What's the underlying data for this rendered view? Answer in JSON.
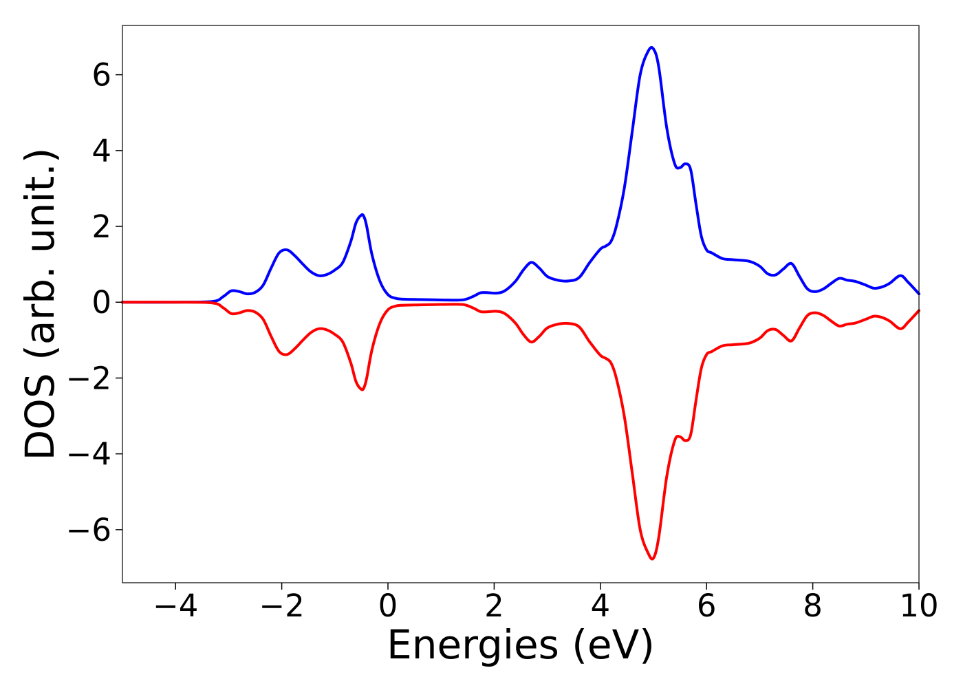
{
  "chart_data": {
    "type": "line",
    "title": "",
    "xlabel": "Energies (eV)",
    "ylabel": "DOS (arb. unit.)",
    "xlim": [
      -5,
      10
    ],
    "ylim": [
      -7.4,
      7.3
    ],
    "xticks": [
      -4,
      -2,
      0,
      2,
      4,
      6,
      8,
      10
    ],
    "xtick_labels": [
      "−4",
      "−2",
      "0",
      "2",
      "4",
      "6",
      "8",
      "10"
    ],
    "yticks": [
      -6,
      -4,
      -2,
      0,
      2,
      4,
      6
    ],
    "ytick_labels": [
      "−6",
      "−4",
      "−2",
      "0",
      "2",
      "4",
      "6"
    ],
    "grid": false,
    "legend": "none",
    "series": [
      {
        "color": "#0000ff",
        "x": [
          -5.0,
          -4.0,
          -3.3,
          -3.1,
          -2.95,
          -2.8,
          -2.65,
          -2.5,
          -2.35,
          -2.2,
          -2.05,
          -1.9,
          -1.75,
          -1.6,
          -1.45,
          -1.3,
          -1.15,
          -1.0,
          -0.85,
          -0.7,
          -0.6,
          -0.5,
          -0.45,
          -0.4,
          -0.3,
          -0.15,
          0.0,
          0.15,
          0.3,
          0.6,
          1.0,
          1.4,
          1.6,
          1.75,
          1.9,
          2.05,
          2.2,
          2.4,
          2.55,
          2.7,
          2.85,
          3.0,
          3.2,
          3.4,
          3.6,
          3.8,
          4.0,
          4.1,
          4.2,
          4.3,
          4.45,
          4.6,
          4.75,
          4.9,
          5.0,
          5.1,
          5.25,
          5.4,
          5.5,
          5.6,
          5.7,
          5.8,
          5.9,
          6.0,
          6.1,
          6.3,
          6.5,
          6.8,
          7.0,
          7.15,
          7.3,
          7.45,
          7.6,
          7.75,
          7.9,
          8.05,
          8.2,
          8.35,
          8.5,
          8.65,
          8.8,
          9.0,
          9.15,
          9.3,
          9.45,
          9.65,
          9.8,
          10.0
        ],
        "y": [
          0.0,
          0.0,
          0.02,
          0.15,
          0.3,
          0.28,
          0.22,
          0.26,
          0.45,
          0.9,
          1.3,
          1.38,
          1.22,
          1.0,
          0.8,
          0.7,
          0.73,
          0.85,
          1.05,
          1.6,
          2.1,
          2.3,
          2.25,
          2.0,
          1.25,
          0.55,
          0.2,
          0.1,
          0.08,
          0.07,
          0.06,
          0.06,
          0.15,
          0.25,
          0.25,
          0.24,
          0.3,
          0.55,
          0.85,
          1.05,
          0.9,
          0.68,
          0.58,
          0.56,
          0.65,
          1.05,
          1.4,
          1.48,
          1.6,
          2.0,
          3.0,
          4.5,
          6.0,
          6.62,
          6.68,
          6.2,
          4.6,
          3.65,
          3.55,
          3.65,
          3.5,
          2.6,
          1.75,
          1.38,
          1.3,
          1.15,
          1.12,
          1.08,
          0.95,
          0.75,
          0.72,
          0.88,
          1.02,
          0.68,
          0.35,
          0.28,
          0.35,
          0.5,
          0.63,
          0.58,
          0.55,
          0.45,
          0.37,
          0.4,
          0.5,
          0.7,
          0.52,
          0.22
        ]
      },
      {
        "color": "#ff0000",
        "x": [
          -5.0,
          -4.0,
          -3.3,
          -3.1,
          -2.95,
          -2.8,
          -2.65,
          -2.5,
          -2.35,
          -2.2,
          -2.05,
          -1.9,
          -1.75,
          -1.6,
          -1.45,
          -1.3,
          -1.15,
          -1.0,
          -0.85,
          -0.7,
          -0.6,
          -0.5,
          -0.45,
          -0.4,
          -0.3,
          -0.15,
          0.0,
          0.15,
          0.3,
          0.6,
          1.0,
          1.4,
          1.6,
          1.75,
          1.9,
          2.05,
          2.2,
          2.4,
          2.55,
          2.7,
          2.85,
          3.0,
          3.2,
          3.4,
          3.6,
          3.8,
          4.0,
          4.1,
          4.2,
          4.3,
          4.45,
          4.6,
          4.75,
          4.9,
          5.0,
          5.1,
          5.25,
          5.4,
          5.5,
          5.6,
          5.7,
          5.8,
          5.9,
          6.0,
          6.1,
          6.3,
          6.5,
          6.8,
          7.0,
          7.15,
          7.3,
          7.45,
          7.6,
          7.75,
          7.9,
          8.05,
          8.2,
          8.35,
          8.5,
          8.65,
          8.8,
          9.0,
          9.15,
          9.3,
          9.45,
          9.65,
          9.8,
          10.0
        ],
        "y": [
          0.0,
          0.0,
          -0.02,
          -0.15,
          -0.3,
          -0.28,
          -0.22,
          -0.26,
          -0.45,
          -0.9,
          -1.3,
          -1.38,
          -1.22,
          -1.0,
          -0.8,
          -0.7,
          -0.73,
          -0.85,
          -1.05,
          -1.6,
          -2.1,
          -2.3,
          -2.25,
          -2.0,
          -1.25,
          -0.55,
          -0.2,
          -0.1,
          -0.08,
          -0.07,
          -0.06,
          -0.06,
          -0.15,
          -0.25,
          -0.25,
          -0.24,
          -0.3,
          -0.55,
          -0.85,
          -1.05,
          -0.9,
          -0.68,
          -0.58,
          -0.56,
          -0.65,
          -1.05,
          -1.4,
          -1.48,
          -1.6,
          -2.0,
          -3.0,
          -4.5,
          -6.0,
          -6.62,
          -6.75,
          -6.2,
          -4.6,
          -3.65,
          -3.55,
          -3.65,
          -3.5,
          -2.6,
          -1.75,
          -1.38,
          -1.3,
          -1.15,
          -1.12,
          -1.08,
          -0.95,
          -0.75,
          -0.72,
          -0.88,
          -1.02,
          -0.68,
          -0.35,
          -0.28,
          -0.35,
          -0.5,
          -0.63,
          -0.58,
          -0.55,
          -0.45,
          -0.37,
          -0.4,
          -0.5,
          -0.7,
          -0.52,
          -0.22
        ]
      }
    ]
  }
}
